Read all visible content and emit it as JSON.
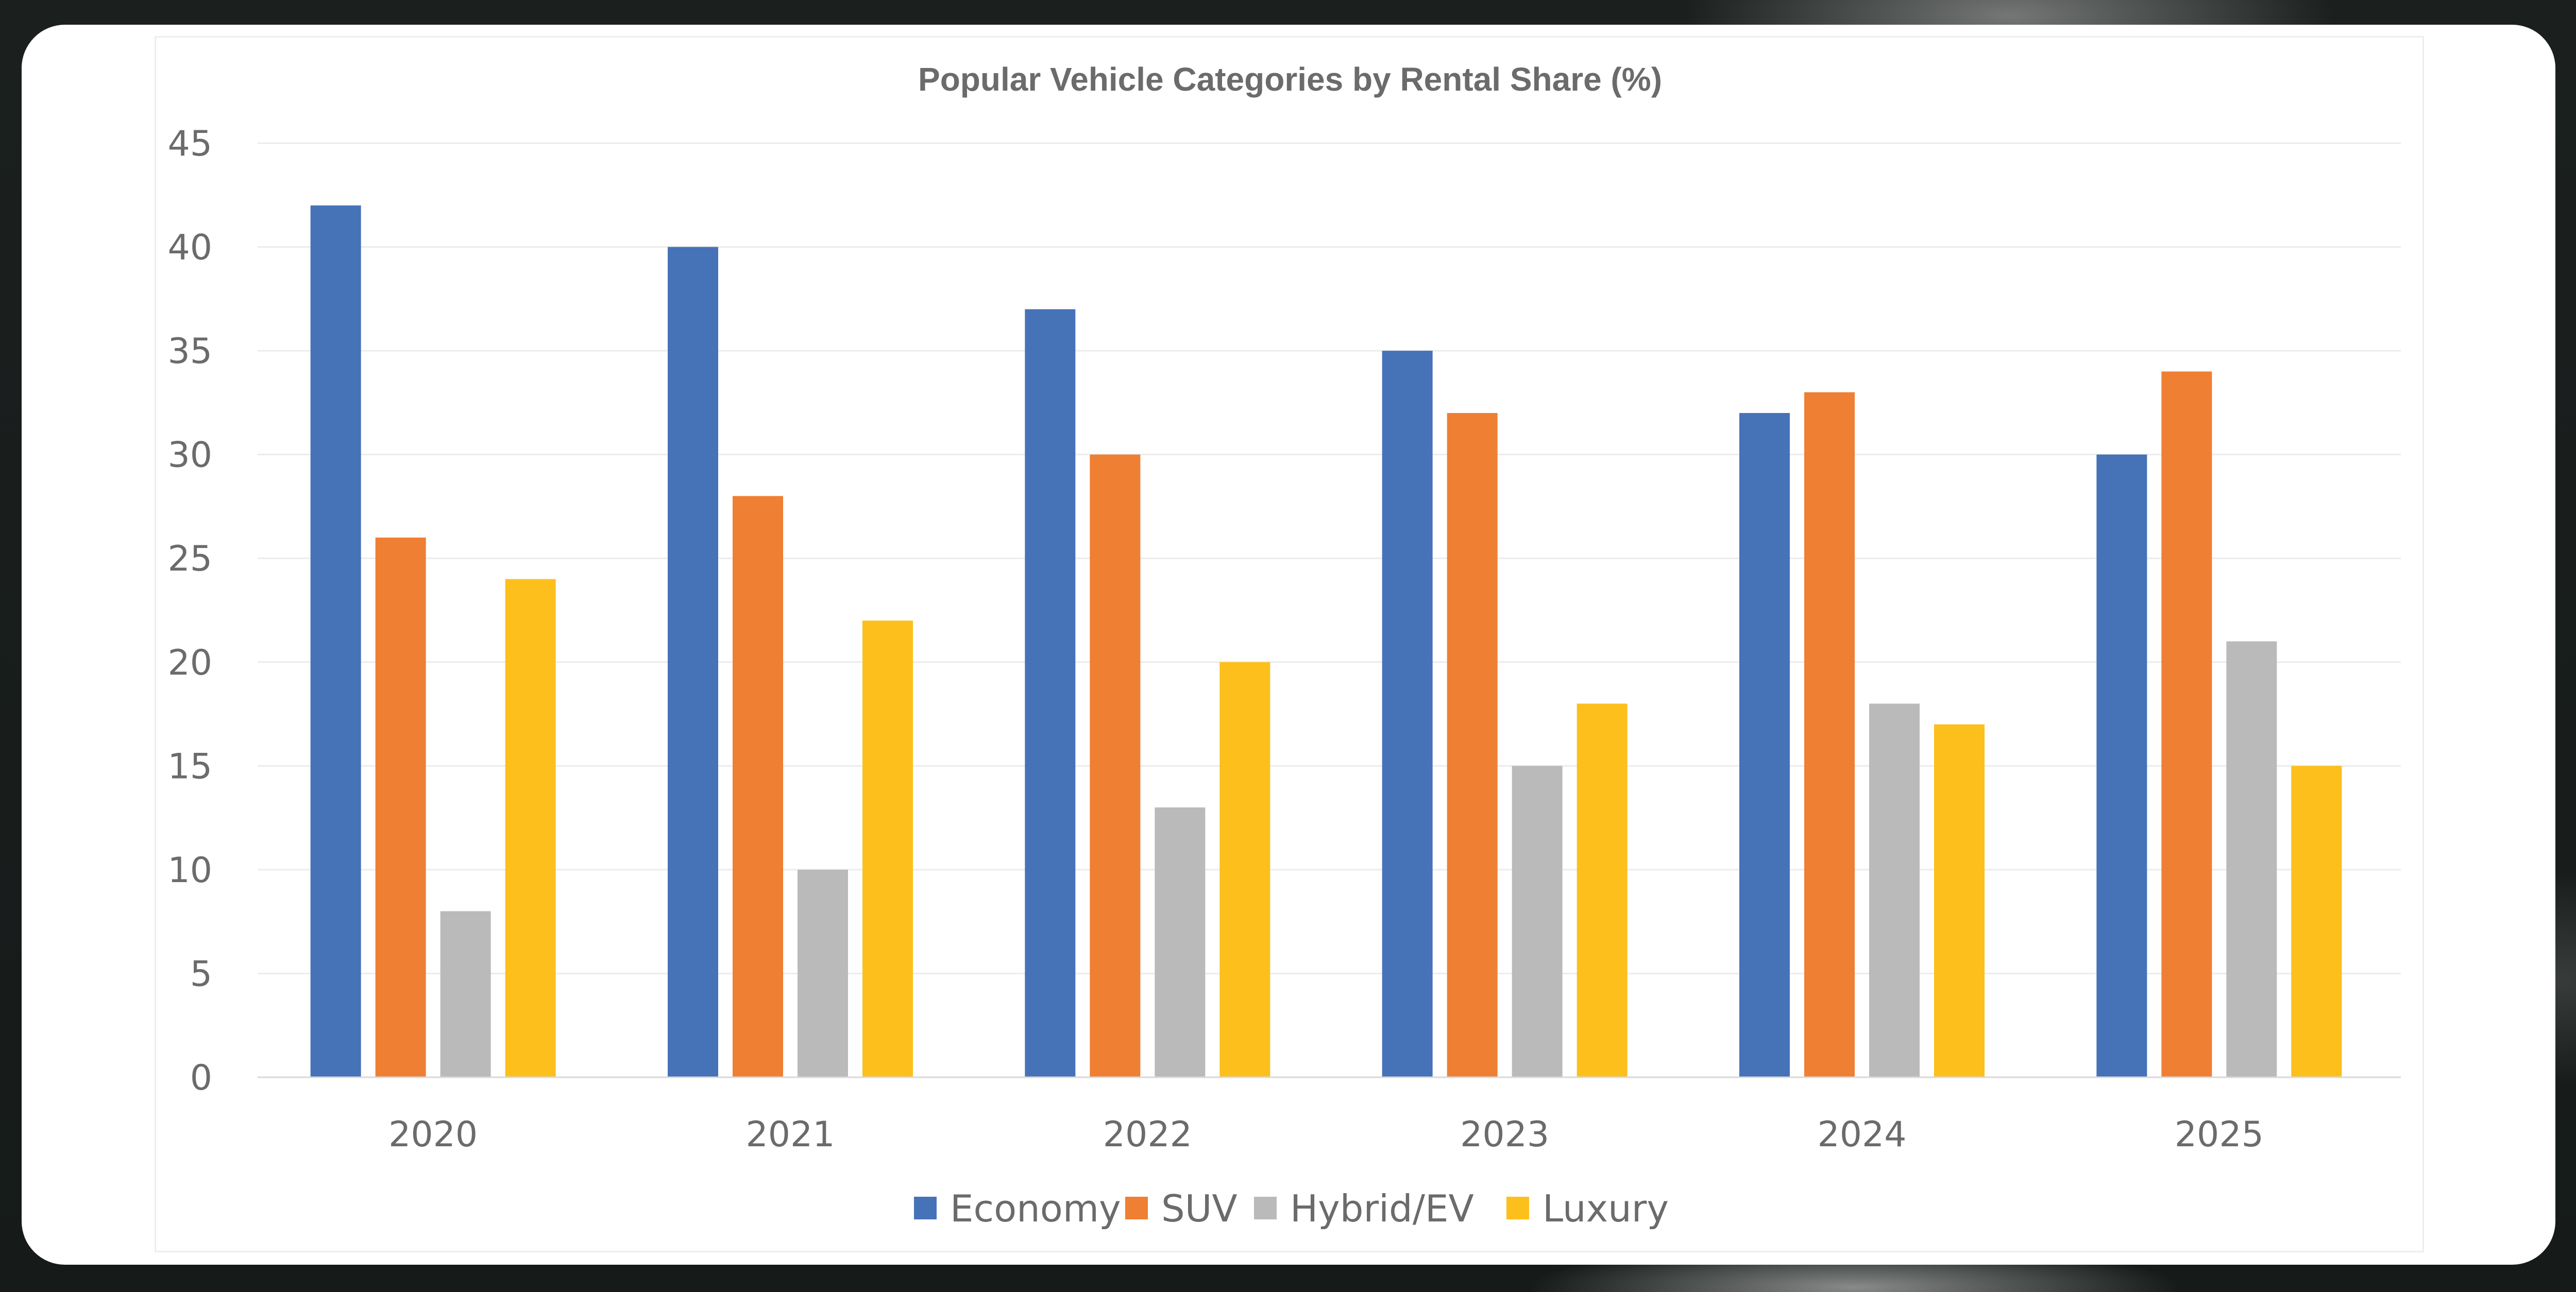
{
  "chart_data": {
    "type": "bar",
    "title": "Popular Vehicle Categories by Rental Share (%)",
    "xlabel": "",
    "ylabel": "",
    "categories": [
      "2020",
      "2021",
      "2022",
      "2023",
      "2024",
      "2025"
    ],
    "ylim": [
      0,
      45
    ],
    "yticks": [
      "0",
      "5",
      "10",
      "15",
      "20",
      "25",
      "30",
      "35",
      "40",
      "45"
    ],
    "grid": true,
    "legend_position": "bottom",
    "series": [
      {
        "name": "Economy",
        "color": "#4672b8",
        "values": [
          42,
          40,
          37,
          35,
          32,
          30
        ]
      },
      {
        "name": "SUV",
        "color": "#ef7f33",
        "values": [
          26,
          28,
          30,
          32,
          33,
          34
        ]
      },
      {
        "name": "Hybrid/EV",
        "color": "#bababa",
        "values": [
          8,
          10,
          13,
          15,
          18,
          21
        ]
      },
      {
        "name": "Luxury",
        "color": "#fcbf1c",
        "values": [
          24,
          22,
          20,
          18,
          17,
          15
        ]
      }
    ]
  }
}
